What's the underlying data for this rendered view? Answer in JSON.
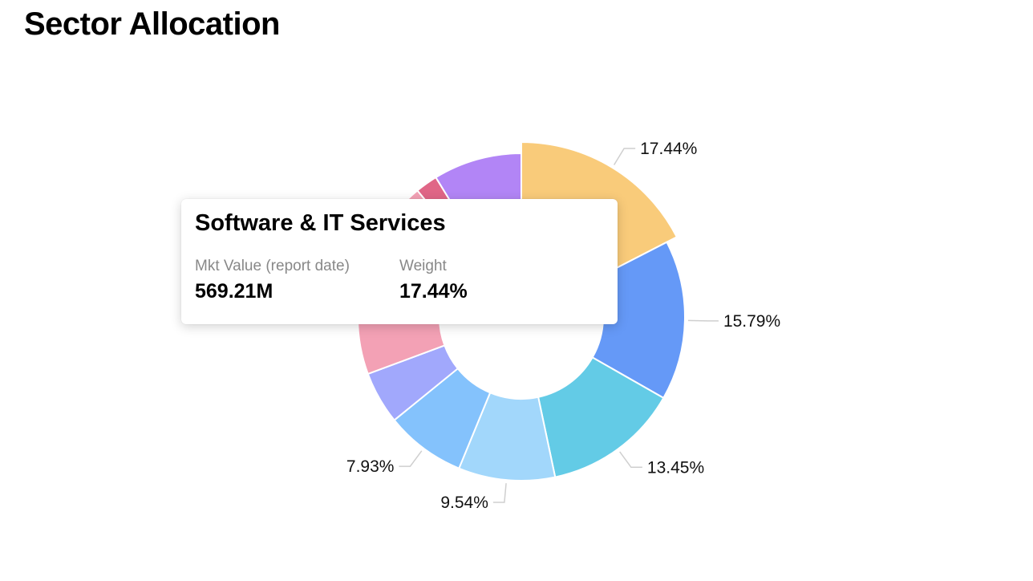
{
  "header": {
    "title": "Sector Allocation"
  },
  "chart_data": {
    "type": "pie",
    "donut": true,
    "start_angle_deg": 0,
    "direction": "clockwise",
    "label_format": "{v}%",
    "slices": [
      {
        "value": 17.44,
        "color": "#F9CB7A",
        "label": "17.44%",
        "highlighted": true
      },
      {
        "value": 15.79,
        "color": "#6599F7",
        "label": "15.79%"
      },
      {
        "value": 13.45,
        "color": "#63CBE6",
        "label": "13.45%"
      },
      {
        "value": 9.54,
        "color": "#A2D7FB",
        "label": "9.54%"
      },
      {
        "value": 7.93,
        "color": "#84C2FC",
        "label": "7.93%"
      },
      {
        "value": 5.2,
        "color": "#A1A8FC",
        "label": ""
      },
      {
        "value": 5.5,
        "color": "#F3A1B5",
        "label": ""
      },
      {
        "value": 14.2,
        "color": "#F3A1B5",
        "label": ""
      },
      {
        "value": 2.2,
        "color": "#E06687",
        "label": ""
      },
      {
        "value": 8.75,
        "color": "#B285F6",
        "label": ""
      }
    ]
  },
  "tooltip": {
    "title": "Software & IT Services",
    "col1_label": "Mkt Value (report date)",
    "col1_value": "569.21M",
    "col2_label": "Weight",
    "col2_value": "17.44%"
  }
}
